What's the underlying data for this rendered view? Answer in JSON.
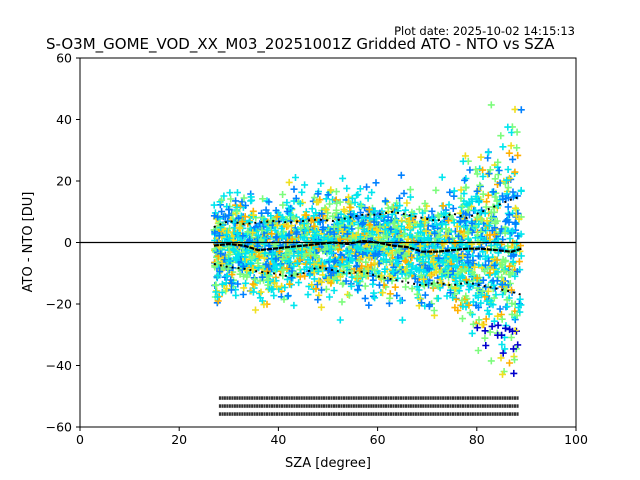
{
  "plot_date": "Plot date: 2025-10-02 14:15:13",
  "chart_data": {
    "type": "scatter",
    "title": "S-O3M_GOME_VOD_XX_M03_20251001Z Gridded ATO - NTO vs SZA",
    "xlabel": "SZA [degree]",
    "ylabel": "ATO - NTO [DU]",
    "xlim": [
      0,
      100
    ],
    "ylim": [
      -60,
      60
    ],
    "xticks": [
      0,
      20,
      40,
      60,
      80,
      100
    ],
    "yticks": [
      -60,
      -40,
      -20,
      0,
      20,
      40,
      60
    ],
    "marker": "plus",
    "colormap": [
      "#0000cd",
      "#0080ff",
      "#00e5ee",
      "#7cfc7c",
      "#f0e020",
      "#ffb000"
    ],
    "reference_line_y": 0,
    "scatter_extent": {
      "sza_range": [
        27,
        89
      ],
      "atonto_range": [
        -58,
        45
      ]
    },
    "mean_curve": {
      "sza": [
        27,
        30,
        33,
        36,
        39,
        42,
        45,
        48,
        51,
        54,
        57,
        60,
        63,
        66,
        69,
        72,
        75,
        78,
        81,
        84,
        87,
        89
      ],
      "values": [
        -1,
        -0.5,
        -1,
        -2.5,
        -2,
        -1.5,
        -1,
        -0.5,
        0,
        -0.5,
        0.5,
        0,
        -1,
        -1.5,
        -3,
        -3,
        -2.5,
        -2,
        -2,
        -2.5,
        -3,
        -2
      ]
    },
    "upper_std_curve": {
      "sza": [
        27,
        30,
        33,
        36,
        39,
        42,
        45,
        48,
        51,
        54,
        57,
        60,
        63,
        66,
        69,
        72,
        75,
        78,
        81,
        84,
        87,
        89
      ],
      "values": [
        5,
        7,
        6,
        6.5,
        7,
        6.5,
        7,
        7.5,
        7,
        8,
        9,
        9,
        10,
        9,
        8,
        7,
        9.5,
        8,
        10,
        12,
        14,
        15
      ]
    },
    "lower_std_curve": {
      "sza": [
        27,
        30,
        33,
        36,
        39,
        42,
        45,
        48,
        51,
        54,
        57,
        60,
        63,
        66,
        69,
        72,
        75,
        78,
        81,
        84,
        87,
        89
      ],
      "values": [
        -7,
        -8,
        -8.5,
        -9.5,
        -10,
        -11,
        -10,
        -8,
        -9,
        -10,
        -9.5,
        -11,
        -12,
        -13,
        -14,
        -13,
        -14,
        -13,
        -14,
        -15,
        -16,
        -17
      ]
    }
  }
}
